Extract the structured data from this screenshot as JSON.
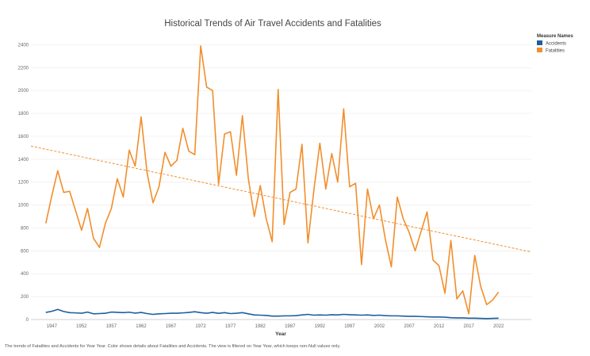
{
  "chart_data": {
    "type": "line",
    "title": "Historical Trends of Air Travel Accidents and Fatalities",
    "xlabel": "Year",
    "ylabel": "",
    "x_ticks": [
      1947,
      1952,
      1957,
      1962,
      1967,
      1972,
      1977,
      1982,
      1987,
      1992,
      1997,
      2002,
      2007,
      2012,
      2017,
      2022
    ],
    "y_ticks": [
      0,
      200,
      400,
      600,
      800,
      1000,
      1200,
      1400,
      1600,
      1800,
      2000,
      2200,
      2400
    ],
    "xlim": [
      1943.5,
      2027.5
    ],
    "ylim": [
      0,
      2500
    ],
    "grid": true,
    "legend": {
      "title": "Measure Names",
      "position": "top-right",
      "entries": [
        {
          "name": "Accidents",
          "color": "#1f5f9f"
        },
        {
          "name": "Fatalities",
          "color": "#f28e2b"
        }
      ]
    },
    "series": [
      {
        "name": "Fatalities",
        "color": "#f28e2b",
        "x": [
          1946,
          1947,
          1948,
          1949,
          1950,
          1951,
          1952,
          1953,
          1954,
          1955,
          1956,
          1957,
          1958,
          1959,
          1960,
          1961,
          1962,
          1963,
          1964,
          1965,
          1966,
          1967,
          1968,
          1969,
          1970,
          1971,
          1972,
          1973,
          1974,
          1975,
          1976,
          1977,
          1978,
          1979,
          1980,
          1981,
          1982,
          1983,
          1984,
          1985,
          1986,
          1987,
          1988,
          1989,
          1990,
          1991,
          1992,
          1993,
          1994,
          1995,
          1996,
          1997,
          1998,
          1999,
          2000,
          2001,
          2002,
          2003,
          2004,
          2005,
          2006,
          2007,
          2008,
          2009,
          2010,
          2011,
          2012,
          2013,
          2014,
          2015,
          2016,
          2017,
          2018,
          2019,
          2020,
          2021,
          2022
        ],
        "values": [
          840,
          1080,
          1300,
          1110,
          1120,
          950,
          780,
          970,
          710,
          630,
          840,
          970,
          1230,
          1070,
          1480,
          1340,
          1770,
          1280,
          1020,
          1160,
          1460,
          1340,
          1390,
          1670,
          1470,
          1440,
          2390,
          2030,
          2000,
          1180,
          1620,
          1640,
          1260,
          1780,
          1230,
          900,
          1170,
          880,
          680,
          2010,
          830,
          1110,
          1140,
          1530,
          670,
          1130,
          1540,
          1140,
          1450,
          1200,
          1840,
          1160,
          1190,
          480,
          1140,
          880,
          1000,
          700,
          460,
          1070,
          880,
          760,
          600,
          770,
          940,
          520,
          470,
          230,
          690,
          180,
          250,
          50,
          560,
          290,
          130,
          170,
          240
        ]
      },
      {
        "name": "Accidents",
        "color": "#1f5f9f",
        "x": [
          1946,
          1947,
          1948,
          1949,
          1950,
          1951,
          1952,
          1953,
          1954,
          1955,
          1956,
          1957,
          1958,
          1959,
          1960,
          1961,
          1962,
          1963,
          1964,
          1965,
          1966,
          1967,
          1968,
          1969,
          1970,
          1971,
          1972,
          1973,
          1974,
          1975,
          1976,
          1977,
          1978,
          1979,
          1980,
          1981,
          1982,
          1983,
          1984,
          1985,
          1986,
          1987,
          1988,
          1989,
          1990,
          1991,
          1992,
          1993,
          1994,
          1995,
          1996,
          1997,
          1998,
          1999,
          2000,
          2001,
          2002,
          2003,
          2004,
          2005,
          2006,
          2007,
          2008,
          2009,
          2010,
          2011,
          2012,
          2013,
          2014,
          2015,
          2016,
          2017,
          2018,
          2019,
          2020,
          2021,
          2022
        ],
        "values": [
          62,
          72,
          88,
          70,
          60,
          58,
          55,
          65,
          50,
          52,
          55,
          65,
          63,
          60,
          64,
          56,
          62,
          52,
          45,
          50,
          52,
          55,
          55,
          58,
          62,
          68,
          60,
          55,
          62,
          54,
          60,
          52,
          55,
          60,
          50,
          40,
          38,
          36,
          30,
          30,
          32,
          32,
          34,
          40,
          45,
          38,
          40,
          38,
          42,
          40,
          45,
          42,
          40,
          38,
          40,
          36,
          38,
          34,
          32,
          32,
          30,
          28,
          28,
          26,
          24,
          22,
          22,
          20,
          16,
          14,
          14,
          12,
          12,
          10,
          8,
          10,
          12
        ]
      }
    ],
    "trend_line": {
      "series": "Fatalities",
      "color": "#f28e2b",
      "x": [
        1943.5,
        2027.5
      ],
      "y": [
        1515,
        590
      ]
    }
  },
  "caption": "The trends of Fatalities and Accidents for Year Year.  Color shows details about Fatalities and Accidents. The view is filtered on Year Year, which keeps non-Null values only."
}
